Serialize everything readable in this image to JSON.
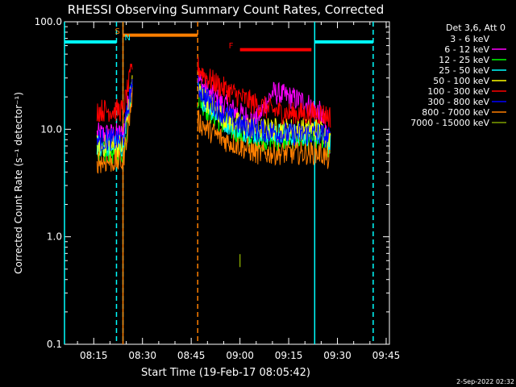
{
  "chart_data": {
    "type": "line",
    "title": "RHESSI Observing Summary Count Rates, Corrected",
    "xlabel": "Start Time (19-Feb-17 08:05:42)",
    "ylabel": "Corrected Count Rate (s⁻¹ detector⁻¹)",
    "yscale": "log",
    "ylim": [
      0.1,
      100.0
    ],
    "xlim": [
      "08:06",
      "09:46"
    ],
    "x_ticks": [
      "08:15",
      "08:30",
      "08:45",
      "09:00",
      "09:15",
      "09:30",
      "09:45"
    ],
    "y_ticks": [
      "0.1",
      "1.0",
      "10.0",
      "100.0"
    ],
    "legend_title": "Det 3,6, Att 0",
    "legend_position": "top-right",
    "grid": false,
    "series": [
      {
        "name": "3 - 6 keV",
        "color": "#000000",
        "x": [
          "08:17",
          "08:20",
          "08:23",
          "08:24",
          "08:26",
          "08:27",
          "08:47",
          "08:55",
          "09:00",
          "09:05",
          "09:10",
          "09:15",
          "09:20",
          "09:25",
          "09:30"
        ],
        "y": [
          null,
          null,
          null,
          null,
          null,
          null,
          null,
          null,
          null,
          null,
          null,
          null,
          null,
          null,
          null
        ]
      },
      {
        "name": "6 - 12 keV",
        "color": "#ff00ff",
        "x": [
          "08:16",
          "08:21",
          "08:24",
          "08:26",
          "08:27",
          "08:47",
          "08:50",
          "08:55",
          "09:00",
          "09:05",
          "09:10",
          "09:15",
          "09:20",
          "09:25",
          "09:28"
        ],
        "y": [
          9,
          9,
          9,
          20,
          32,
          30,
          22,
          17,
          14,
          12,
          22,
          20,
          18,
          14,
          7
        ]
      },
      {
        "name": "12 - 25 keV",
        "color": "#00ff00",
        "x": [
          "08:16",
          "08:21",
          "08:24",
          "08:26",
          "08:27",
          "08:47",
          "08:50",
          "08:55",
          "09:00",
          "09:05",
          "09:10",
          "09:15",
          "09:20",
          "09:25",
          "09:28"
        ],
        "y": [
          6,
          6,
          6,
          15,
          26,
          20,
          15,
          11,
          9,
          8,
          8,
          8,
          8,
          8,
          6
        ]
      },
      {
        "name": "25 - 50 keV",
        "color": "#00ffff",
        "x": [
          "08:16",
          "08:21",
          "08:24",
          "08:26",
          "08:27",
          "08:47",
          "08:50",
          "08:55",
          "09:00",
          "09:05",
          "09:10",
          "09:15",
          "09:20",
          "09:25",
          "09:28"
        ],
        "y": [
          7,
          7,
          7,
          17,
          28,
          22,
          17,
          12,
          10,
          9,
          9,
          9,
          9,
          9,
          7
        ]
      },
      {
        "name": "50 - 100 keV",
        "color": "#ffff00",
        "x": [
          "08:16",
          "08:21",
          "08:24",
          "08:26",
          "08:27",
          "08:47",
          "08:50",
          "08:55",
          "09:00",
          "09:05",
          "09:10",
          "09:15",
          "09:20",
          "09:25",
          "09:28"
        ],
        "y": [
          7,
          7,
          7,
          18,
          30,
          24,
          18,
          13,
          11,
          10,
          10,
          10,
          10,
          10,
          7.5
        ]
      },
      {
        "name": "100 - 300 keV",
        "color": "#ff0000",
        "x": [
          "08:16",
          "08:21",
          "08:24",
          "08:26",
          "08:27",
          "08:47",
          "08:50",
          "08:55",
          "09:00",
          "09:05",
          "09:10",
          "09:15",
          "09:20",
          "09:25",
          "09:28"
        ],
        "y": [
          15,
          15,
          15,
          28,
          42,
          38,
          30,
          24,
          20,
          17,
          15,
          14,
          14,
          14,
          13
        ]
      },
      {
        "name": "300 - 800 keV",
        "color": "#0000ff",
        "x": [
          "08:16",
          "08:21",
          "08:24",
          "08:26",
          "08:27",
          "08:47",
          "08:50",
          "08:55",
          "09:00",
          "09:05",
          "09:10",
          "09:15",
          "09:20",
          "09:25",
          "09:28"
        ],
        "y": [
          8,
          8,
          8,
          19,
          30,
          25,
          19,
          14,
          11,
          10,
          9.5,
          9,
          9,
          9,
          8
        ]
      },
      {
        "name": "800 - 7000 keV",
        "color": "#ff7f00",
        "x": [
          "08:16",
          "08:21",
          "08:24",
          "08:26",
          "08:27",
          "08:47",
          "08:50",
          "08:55",
          "09:00",
          "09:05",
          "09:10",
          "09:15",
          "09:20",
          "09:25",
          "09:28"
        ],
        "y": [
          5,
          5,
          5,
          13,
          22,
          12,
          10,
          8,
          7,
          6,
          6,
          6,
          6,
          6,
          5
        ]
      },
      {
        "name": "7000 - 15000 keV",
        "color": "#7f9f00",
        "x": [
          "09:00"
        ],
        "y": [
          0.6
        ]
      }
    ],
    "annotations": [
      {
        "label": "S",
        "color": "#ff7f00",
        "x": "08:24"
      },
      {
        "label": "N",
        "color": "#00ffff",
        "x": "08:24"
      },
      {
        "label": "F",
        "color": "#ff0000",
        "x": "09:00"
      }
    ],
    "bars": [
      {
        "color": "#00ffff",
        "x": [
          "08:06",
          "08:22"
        ],
        "y": 65
      },
      {
        "color": "#ff7f00",
        "x": [
          "08:24",
          "08:47"
        ],
        "y": 75
      },
      {
        "color": "#ff0000",
        "x": [
          "09:00",
          "09:22"
        ],
        "y": 55
      },
      {
        "color": "#00ffff",
        "x": [
          "09:23",
          "09:41"
        ],
        "y": 65
      }
    ],
    "vlines": [
      {
        "color": "#00ffff",
        "x": "08:06",
        "style": "solid"
      },
      {
        "color": "#00ffff",
        "x": "08:22",
        "style": "dashed"
      },
      {
        "color": "#00ffff",
        "x": "08:24",
        "style": "dashed"
      },
      {
        "color": "#ff7f00",
        "x": "08:24",
        "style": "solid"
      },
      {
        "color": "#ff7f00",
        "x": "08:47",
        "style": "dashed"
      },
      {
        "color": "#00ffff",
        "x": "09:23",
        "style": "solid"
      },
      {
        "color": "#00ffff",
        "x": "09:41",
        "style": "dashed"
      }
    ]
  },
  "footer": {
    "date": "2-Sep-2022 02:32"
  }
}
